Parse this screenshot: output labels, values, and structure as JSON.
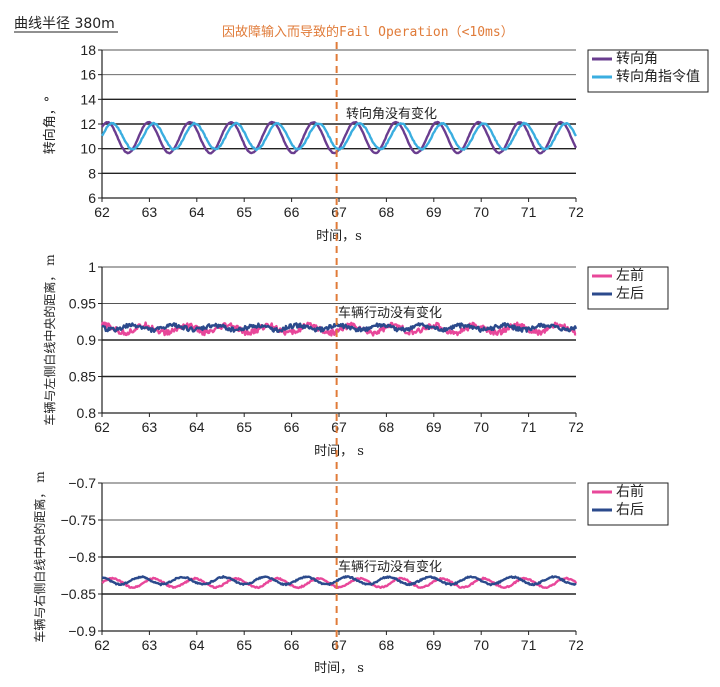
{
  "header": {
    "curve_radius_label": "曲线半径 380m",
    "event_label": "因故障输入而导致的Fail Operation（<10ms）"
  },
  "colors": {
    "purple": "#6a3d8f",
    "cyan": "#3aaee0",
    "pink": "#e8479a",
    "navy": "#2b4a8c",
    "event": "#e07b39"
  },
  "event_time": 66.95,
  "chart_data": [
    {
      "type": "line",
      "ylabel": "转向角，°",
      "xlabel": "时间，s",
      "xlim": [
        62,
        72
      ],
      "ylim": [
        6,
        18
      ],
      "xticks": [
        "62",
        "63",
        "64",
        "65",
        "66",
        "67",
        "68",
        "69",
        "70",
        "71",
        "72"
      ],
      "yticks": [
        "6",
        "8",
        "10",
        "12",
        "14",
        "16",
        "18"
      ],
      "grid_y": [
        8,
        10,
        12,
        14,
        16,
        18
      ],
      "annotation": "转向角没有变化",
      "legend_position": "top-right",
      "series": [
        {
          "name": "转向角",
          "color_key": "purple",
          "mean": 10.9,
          "amplitude": 1.25,
          "period": 0.87,
          "phase": 0.12,
          "noise": 0.03
        },
        {
          "name": "转向角指令值",
          "color_key": "cyan",
          "mean": 11.0,
          "amplitude": 1.05,
          "period": 0.87,
          "phase": 0.0,
          "noise": 0.05
        }
      ]
    },
    {
      "type": "line",
      "ylabel": "车辆与左侧白线中央的距离， m",
      "xlabel": "时间， s",
      "xlim": [
        62,
        72
      ],
      "ylim": [
        0.8,
        1.0
      ],
      "xticks": [
        "62",
        "63",
        "64",
        "65",
        "66",
        "67",
        "68",
        "69",
        "70",
        "71",
        "72"
      ],
      "yticks": [
        "0.8",
        "0.85",
        "0.9",
        "0.95",
        "1"
      ],
      "grid_y": [
        0.85,
        0.9,
        0.95,
        1.0
      ],
      "annotation": "车辆行动没有变化",
      "legend_position": "top-right",
      "series": [
        {
          "name": "左前",
          "color_key": "pink",
          "mean": 0.915,
          "amplitude": 0.005,
          "period": 0.87,
          "phase": 0.2,
          "noise": 0.004
        },
        {
          "name": "左后",
          "color_key": "navy",
          "mean": 0.917,
          "amplitude": 0.003,
          "period": 0.87,
          "phase": 0.5,
          "noise": 0.003
        }
      ]
    },
    {
      "type": "line",
      "ylabel": "车辆与右侧白线中央的距离， m",
      "xlabel": "时间， s",
      "xlim": [
        62,
        72
      ],
      "ylim": [
        -0.9,
        -0.7
      ],
      "xticks": [
        "62",
        "63",
        "64",
        "65",
        "66",
        "67",
        "68",
        "69",
        "70",
        "71",
        "72"
      ],
      "yticks": [
        "-0.9",
        "-0.85",
        "-0.8",
        "-0.75",
        "-0.7"
      ],
      "grid_y": [
        -0.85,
        -0.8,
        -0.75,
        -0.7
      ],
      "annotation": "车辆行动没有变化",
      "legend_position": "top-right",
      "series": [
        {
          "name": "右前",
          "color_key": "pink",
          "mean": -0.835,
          "amplitude": 0.006,
          "period": 0.87,
          "phase": 0.0,
          "noise": 0.001
        },
        {
          "name": "右后",
          "color_key": "navy",
          "mean": -0.832,
          "amplitude": 0.005,
          "period": 0.87,
          "phase": 0.3,
          "noise": 0.001
        }
      ]
    }
  ]
}
